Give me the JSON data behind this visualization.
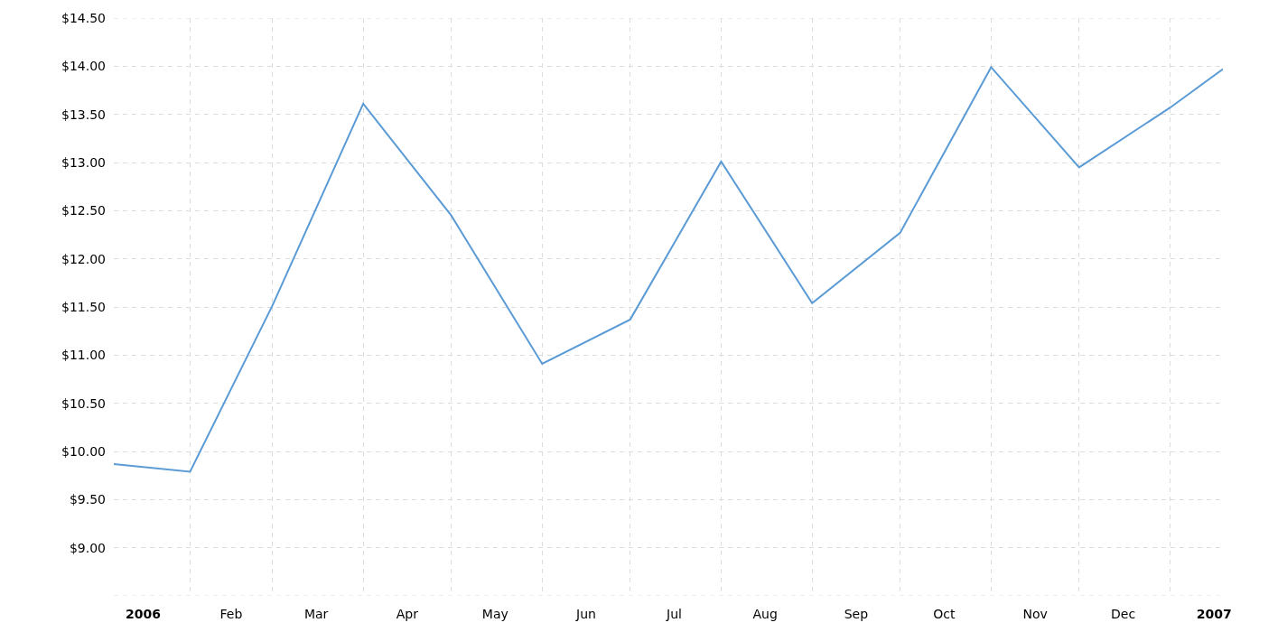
{
  "chart_data": {
    "type": "line",
    "x": [
      "2006-01-06",
      "2006-02-01",
      "2006-03-01",
      "2006-04-01",
      "2006-05-01",
      "2006-06-01",
      "2006-07-01",
      "2006-08-01",
      "2006-09-01",
      "2006-10-01",
      "2006-11-01",
      "2006-12-01",
      "2007-01-01",
      "2007-01-19"
    ],
    "series": [
      {
        "color": "#5b9bd5",
        "values": [
          9.87,
          9.79,
          11.51,
          13.61,
          12.45,
          10.91,
          11.37,
          13.01,
          11.54,
          12.27,
          13.99,
          12.95,
          13.57,
          13.97
        ]
      }
    ],
    "xlim": [
      "2006-01-06",
      "2007-01-19"
    ],
    "xticks": [
      {
        "value": "2006-01-16",
        "label": "2006"
      },
      {
        "value": "2006-02-15",
        "label": "Feb"
      },
      {
        "value": "2006-03-16",
        "label": "Mar"
      },
      {
        "value": "2006-04-16",
        "label": "Apr"
      },
      {
        "value": "2006-05-16",
        "label": "May"
      },
      {
        "value": "2006-06-16",
        "label": "Jun"
      },
      {
        "value": "2006-07-16",
        "label": "Jul"
      },
      {
        "value": "2006-08-16",
        "label": "Aug"
      },
      {
        "value": "2006-09-16",
        "label": "Sep"
      },
      {
        "value": "2006-10-16",
        "label": "Oct"
      },
      {
        "value": "2006-11-16",
        "label": "Nov"
      },
      {
        "value": "2006-12-16",
        "label": "Dec"
      },
      {
        "value": "2007-01-16",
        "label": "2007"
      },
      {
        "value": "2006-02-01",
        "label": null
      },
      {
        "value": "2006-03-01",
        "label": null
      },
      {
        "value": "2006-04-01",
        "label": null
      },
      {
        "value": "2006-05-01",
        "label": null
      },
      {
        "value": "2006-06-01",
        "label": null
      },
      {
        "value": "2006-07-01",
        "label": null
      },
      {
        "value": "2006-08-01",
        "label": null
      },
      {
        "value": "2006-09-01",
        "label": null
      },
      {
        "value": "2006-10-01",
        "label": null
      },
      {
        "value": "2006-11-01",
        "label": null
      },
      {
        "value": "2006-12-01",
        "label": null
      },
      {
        "value": "2007-01-01",
        "label": null
      }
    ],
    "ylim": [
      8.5,
      14.5
    ],
    "yticks": [
      {
        "value": 8.5,
        "label": null
      },
      {
        "value": 9,
        "label": "$9.00"
      },
      {
        "value": 9.5,
        "label": "$9.50"
      },
      {
        "value": 10,
        "label": "$10.00"
      },
      {
        "value": 10.5,
        "label": "$10.50"
      },
      {
        "value": 11,
        "label": "$11.00"
      },
      {
        "value": 11.5,
        "label": "$11.50"
      },
      {
        "value": 12,
        "label": "$12.00"
      },
      {
        "value": 12.5,
        "label": "$12.50"
      },
      {
        "value": 13,
        "label": "$13.00"
      },
      {
        "value": 13.5,
        "label": "$13.50"
      },
      {
        "value": 14,
        "label": "$14.00"
      },
      {
        "value": 14.5,
        "label": "$14.50"
      }
    ],
    "grid": true,
    "marker": "none",
    "line_style": "solid"
  }
}
